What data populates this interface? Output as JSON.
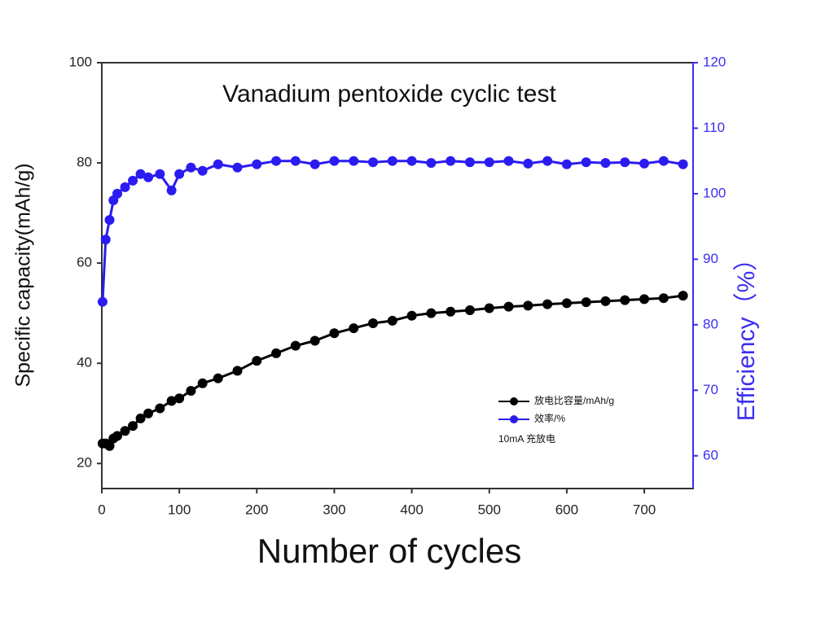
{
  "chart_data": {
    "type": "scatter",
    "title": "Vanadium pentoxide cyclic test",
    "x_label": "Number of cycles",
    "y_label": "Specific capacity(mAh/g)",
    "y2_label": "Efficiency（%）",
    "annotation": "10mA 充放电",
    "x": [
      1,
      5,
      10,
      15,
      20,
      30,
      40,
      50,
      60,
      75,
      90,
      100,
      115,
      130,
      150,
      175,
      200,
      225,
      250,
      275,
      300,
      325,
      350,
      375,
      400,
      425,
      450,
      475,
      500,
      525,
      550,
      575,
      600,
      625,
      650,
      675,
      700,
      725,
      750
    ],
    "series": [
      {
        "name": "放电比容量/mAh/g",
        "color": "#000000",
        "values": [
          24,
          24,
          23.5,
          25,
          25.5,
          26.5,
          27.5,
          29,
          30,
          31,
          32.5,
          33,
          34.5,
          36,
          37,
          38.5,
          40.5,
          42,
          43.5,
          44.5,
          46,
          47,
          48,
          48.5,
          49.5,
          50,
          50.3,
          50.6,
          51,
          51.3,
          51.5,
          51.8,
          52,
          52.2,
          52.4,
          52.6,
          52.8,
          53,
          53.5
        ]
      },
      {
        "name": "效率/%",
        "color": "#2a1cf0",
        "axis": "y2",
        "values": [
          83.5,
          93,
          96,
          99,
          100,
          101,
          102,
          103,
          102.5,
          103,
          100.5,
          103,
          104,
          103.5,
          104.5,
          104,
          104.5,
          105,
          105,
          104.5,
          105,
          105,
          104.8,
          105,
          105,
          104.7,
          105,
          104.8,
          104.8,
          105,
          104.6,
          105,
          104.5,
          104.8,
          104.7,
          104.8,
          104.6,
          105,
          104.5
        ]
      }
    ],
    "xlim": [
      0,
      763
    ],
    "xticks": [
      0,
      100,
      200,
      300,
      400,
      500,
      600,
      700
    ],
    "ylim": [
      15,
      100
    ],
    "yticks": [
      20,
      40,
      60,
      80,
      100
    ],
    "y2lim": [
      55,
      120
    ],
    "y2ticks": [
      60,
      70,
      80,
      90,
      100,
      110,
      120
    ],
    "y2_color": "#3b2ff0"
  }
}
